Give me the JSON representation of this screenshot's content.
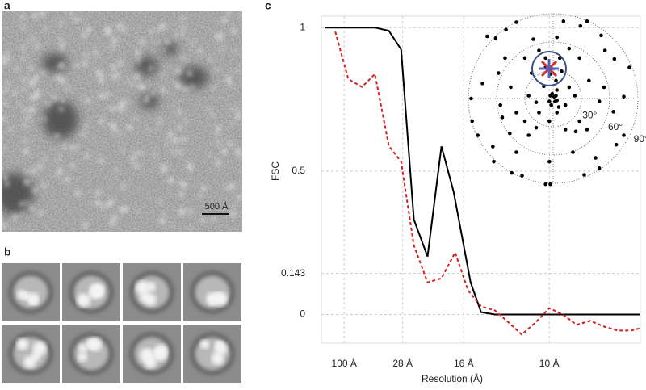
{
  "panels": {
    "a": {
      "label": "a",
      "scale_bar": "500 Å"
    },
    "b": {
      "label": "b"
    },
    "c": {
      "label": "c"
    }
  },
  "chart_data": [
    {
      "type": "line",
      "ylabel": "FSC",
      "xlabel": "Resolution (Å)",
      "xlim": [
        0,
        0.14
      ],
      "ylim": [
        -0.1,
        1.04
      ],
      "xticks": [
        {
          "value": 0.01,
          "label": "100 Å"
        },
        {
          "value": 0.0357,
          "label": "28 Å"
        },
        {
          "value": 0.0625,
          "label": "16 Å"
        },
        {
          "value": 0.1,
          "label": "10 Å"
        }
      ],
      "yticks": [
        0,
        0.143,
        0.5,
        1
      ],
      "grid": true,
      "series": [
        {
          "color": "#000000",
          "dash": false,
          "x": [
            0.0015,
            0.0235,
            0.0296,
            0.035,
            0.0406,
            0.0466,
            0.0527,
            0.058,
            0.0655,
            0.0701,
            0.0762,
            0.14
          ],
          "values": [
            1,
            1,
            0.989,
            0.924,
            0.331,
            0.202,
            0.586,
            0.429,
            0.112,
            0.008,
            0,
            0
          ]
        },
        {
          "color": "#d42020",
          "dash": true,
          "x": [
            0.0061,
            0.0118,
            0.0178,
            0.0235,
            0.0296,
            0.035,
            0.0406,
            0.0466,
            0.0527,
            0.0587,
            0.0644,
            0.0701,
            0.0762,
            0.0822,
            0.0879,
            0.094,
            0.1,
            0.106,
            0.112,
            0.118,
            0.124,
            0.13,
            0.136,
            0.14
          ],
          "values": [
            0.986,
            0.821,
            0.793,
            0.838,
            0.588,
            0.532,
            0.241,
            0.112,
            0.126,
            0.216,
            0.084,
            0.028,
            0.014,
            -0.028,
            -0.07,
            -0.028,
            0.022,
            0,
            -0.036,
            -0.022,
            -0.042,
            -0.056,
            -0.056,
            -0.048
          ]
        }
      ]
    },
    {
      "type": "polar-scatter",
      "color": "#000000",
      "rlim": [
        0,
        90
      ],
      "rticks": [
        {
          "value": 30,
          "label": "30°"
        },
        {
          "value": 60,
          "label": "60°"
        },
        {
          "value": 90,
          "label": "90°"
        }
      ],
      "x": [
        -70,
        -61,
        -50,
        -39,
        -51,
        -58,
        -75,
        -87,
        -86,
        -80,
        -64,
        -63,
        -44,
        -33,
        -8,
        -3,
        33,
        49,
        45,
        67,
        75,
        75,
        81,
        65,
        55,
        51,
        36,
        29,
        11,
        -21,
        -15,
        -30,
        -45,
        -39,
        -54,
        -26,
        -18,
        -30,
        13,
        24,
        28,
        36,
        49,
        54,
        38,
        28,
        17,
        4,
        7,
        -8,
        -23,
        -26,
        -18,
        -15,
        -4,
        4,
        13,
        17,
        23,
        4,
        1,
        -4,
        3,
        -3,
        -8,
        9,
        -10,
        6,
        -46,
        -39,
        -4,
        21,
        64,
        -56,
        -1,
        3,
        -3,
        2,
        -2,
        4
      ],
      "y": [
        66,
        64,
        73,
        81,
        43,
        27,
        16,
        0,
        -24,
        -39,
        -51,
        -67,
        -79,
        -82,
        -91,
        -91,
        -81,
        -74,
        -63,
        -49,
        -39,
        2,
        33,
        42,
        51,
        67,
        82,
        77,
        82,
        63,
        51,
        43,
        12,
        -15,
        -20,
        -39,
        -31,
        -24,
        -33,
        -35,
        -24,
        -33,
        -3,
        12,
        19,
        43,
        53,
        65,
        43,
        43,
        27,
        3,
        -4,
        -15,
        -24,
        -15,
        -7,
        12,
        3,
        9,
        2,
        -3,
        19,
        26,
        33,
        29,
        13,
        -9,
        -37,
        -57,
        -67,
        -57,
        -14,
        -7,
        5,
        3,
        3,
        -3,
        -7,
        -2
      ]
    }
  ]
}
